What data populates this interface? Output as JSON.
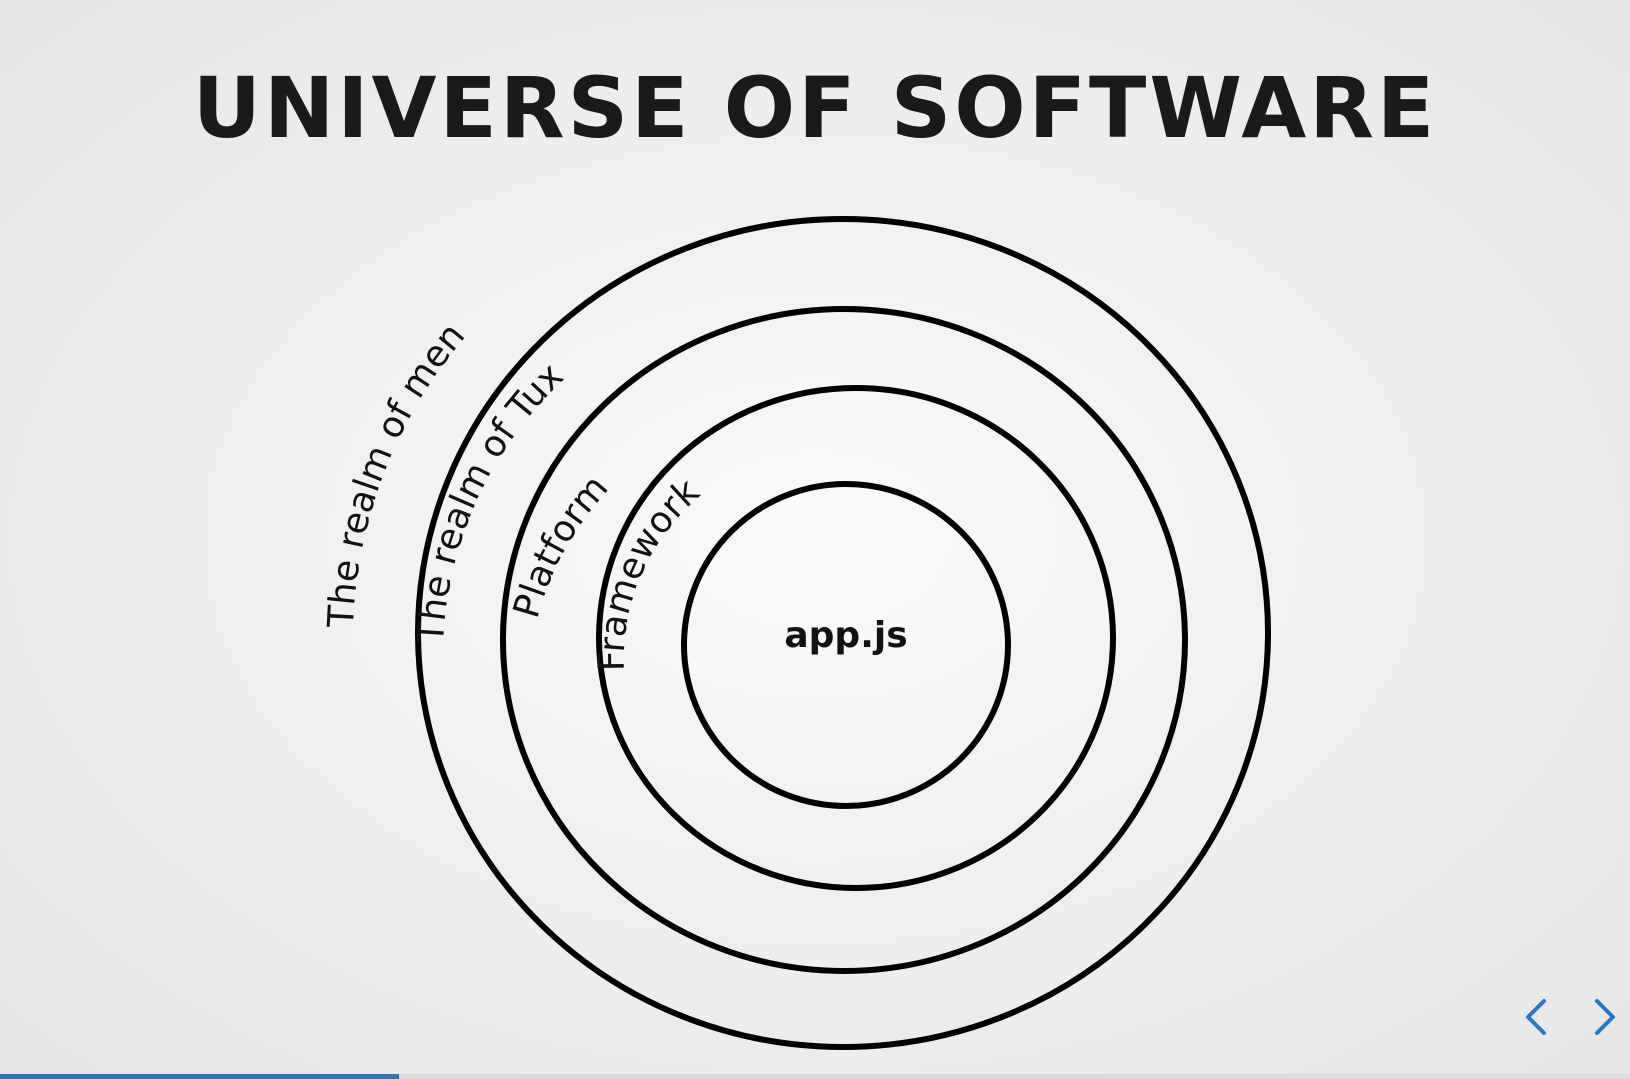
{
  "slide": {
    "title": "UNIVERSE OF SOFTWARE",
    "rings": [
      {
        "label": "The realm of men"
      },
      {
        "label": "The realm of Tux"
      },
      {
        "label": "Platform"
      },
      {
        "label": "Framework"
      }
    ],
    "center_label": "app.js"
  },
  "controls": {
    "prev_icon": "chevron-left-icon",
    "next_icon": "chevron-right-icon",
    "accent_color": "#2a76c6"
  },
  "progress": {
    "fraction": 0.245
  }
}
